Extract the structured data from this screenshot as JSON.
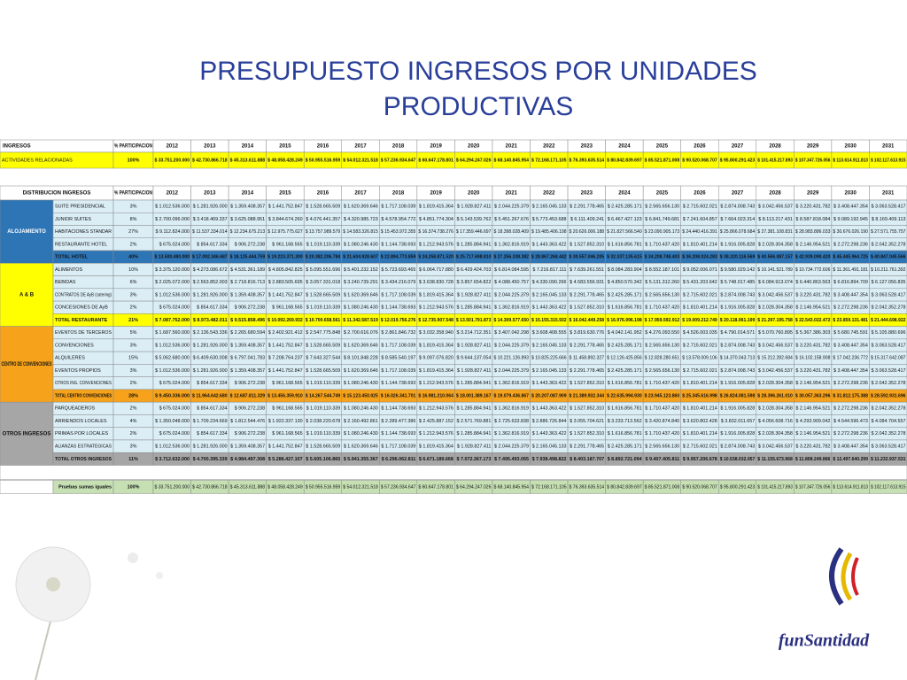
{
  "title_line1": "PRESUPUESTO INGRESOS POR UNIDADES",
  "title_line2": "PRODUCTIVAS",
  "top_table": {
    "header_label": "INGRESOS",
    "pct_header": "% PARTICIPACION",
    "years": [
      2012,
      2013,
      2014,
      2015,
      2016,
      2017,
      2018,
      2019,
      2020,
      2021,
      2022,
      2023,
      2024,
      2025,
      2026,
      2027,
      2028,
      2029,
      2030,
      2031
    ],
    "row": {
      "label": "ACTIVIDADES RELACIONADAS",
      "pct": "100%",
      "values": [
        "$ 33.751.200.000",
        "$ 42.730.866.718",
        "$ 45.313.611.888",
        "$ 48.058.428.249",
        "$ 50.955.516.959",
        "$ 54.012.321.518",
        "$ 57.236.934.647",
        "$ 60.647.178.801",
        "$ 64.294.247.026",
        "$ 68.140.845.954",
        "$ 72.168.171.105",
        "$ 76.393.635.514",
        "$ 80.842.839.697",
        "$ 85.521.871.008",
        "$ 90.520.068.707",
        "$ 95.800.291.423",
        "$ 101.415.217.893",
        "$ 107.347.726.056",
        "$ 113.614.911.813",
        "$ 102.117.613.915"
      ]
    }
  },
  "main_table": {
    "header_label": "DISTRIBUCION INGRESOS",
    "pct_header": "% PARTICIPACION",
    "years": [
      2012,
      2013,
      2014,
      2015,
      2016,
      2017,
      2018,
      2019,
      2020,
      2021,
      2022,
      2023,
      2024,
      2025,
      2026,
      2027,
      2028,
      2029,
      2030,
      2031
    ],
    "groups": [
      {
        "name": "ALOJAMIENTO",
        "rows": [
          {
            "label": "SUITE PRESIDENCIAL",
            "pct": "3%",
            "values": [
              "$ 1.012.536.000",
              "$ 1.281.926.000",
              "$ 1.359.408.357",
              "$ 1.441.752.847",
              "$ 1.528.665.509",
              "$ 1.620.369.646",
              "$ 1.717.108.039",
              "$ 1.819.415.364",
              "$ 1.928.827.411",
              "$ 2.044.225.379",
              "$ 2.165.045.133",
              "$ 2.291.778.465",
              "$ 2.425.285.171",
              "$ 2.565.656.130",
              "$ 2.715.602.021",
              "$ 2.874.008.743",
              "$ 3.042.456.537",
              "$ 3.220.431.782",
              "$ 3.408.447.354",
              "$ 3.063.528.417"
            ]
          },
          {
            "label": "JUNIOR SUITES",
            "pct": "8%",
            "values": [
              "$ 2.700.096.000",
              "$ 3.418.469.337",
              "$ 3.625.088.951",
              "$ 3.844.674.260",
              "$ 4.076.441.357",
              "$ 4.320.985.723",
              "$ 4.578.954.772",
              "$ 4.851.774.304",
              "$ 5.143.539.762",
              "$ 5.451.267.676",
              "$ 5.773.453.688",
              "$ 6.111.409.241",
              "$ 6.467.427.123",
              "$ 6.841.749.681",
              "$ 7.241.604.857",
              "$ 7.664.023.314",
              "$ 8.113.217.431",
              "$ 8.587.818.084",
              "$ 9.089.192.945",
              "$ 8.169.409.113"
            ]
          },
          {
            "label": "HABITACIONES STANDAR",
            "pct": "27%",
            "values": [
              "$ 9.112.824.000",
              "$ 11.537.334.014",
              "$ 12.234.675.213",
              "$ 12.975.775.627",
              "$ 13.757.989.579",
              "$ 14.583.326.815",
              "$ 15.453.972.355",
              "$ 16.374.738.276",
              "$ 17.359.446.697",
              "$ 18.398.028.409",
              "$ 19.485.406.198",
              "$ 20.626.006.188",
              "$ 21.827.566.540",
              "$ 23.090.905.173",
              "$ 24.440.416.391",
              "$ 25.866.078.684",
              "$ 27.381.108.831",
              "$ 28.983.886.033",
              "$ 30.676.026.190",
              "$ 27.571.755.757"
            ]
          },
          {
            "label": "RESTAURANTE HOTEL",
            "pct": "2%",
            "values": [
              "$ 675.024.000",
              "$ 854.617.334",
              "$ 906.272.238",
              "$ 961.168.565",
              "$ 1.019.110.339",
              "$ 1.080.246.430",
              "$ 1.144.738.693",
              "$ 1.212.943.576",
              "$ 1.285.884.941",
              "$ 1.362.816.919",
              "$ 1.443.363.422",
              "$ 1.527.852.310",
              "$ 1.616.856.781",
              "$ 1.710.437.420",
              "$ 1.810.401.214",
              "$ 1.916.005.828",
              "$ 2.028.304.358",
              "$ 2.146.954.521",
              "$ 2.272.298.236",
              "$ 2.042.352.278"
            ]
          },
          {
            "label": "TOTAL HOTEL",
            "pct": "40%",
            "values": [
              "$ 13.500.480.000",
              "$ 17.092.346.687",
              "$ 18.125.444.759",
              "$ 19.223.371.300",
              "$ 20.382.206.784",
              "$ 21.604.928.607",
              "$ 22.894.773.859",
              "$ 24.258.871.520",
              "$ 25.717.698.810",
              "$ 27.256.338.382",
              "$ 28.867.268.442",
              "$ 30.557.046.205",
              "$ 32.337.135.615",
              "$ 34.208.748.403",
              "$ 36.208.024.283",
              "$ 38.320.116.569",
              "$ 40.566.087.157",
              "$ 42.939.090.420",
              "$ 45.445.964.725",
              "$ 40.847.045.566"
            ]
          }
        ]
      },
      {
        "name": "A & B",
        "rows": [
          {
            "label": "ALIMENTOS",
            "pct": "10%",
            "values": [
              "$ 3.375.120.000",
              "$ 4.273.086.672",
              "$ 4.531.361.189",
              "$ 4.805.842.825",
              "$ 5.095.551.696",
              "$ 5.401.232.152",
              "$ 5.723.693.465",
              "$ 6.064.717.880",
              "$ 6.429.424.703",
              "$ 6.814.084.595",
              "$ 7.216.817.111",
              "$ 7.639.261.551",
              "$ 8.084.283.904",
              "$ 8.552.187.101",
              "$ 9.052.006.071",
              "$ 9.580.029.142",
              "$ 10.141.521.789",
              "$ 10.734.772.606",
              "$ 11.361.491.181",
              "$ 10.211.761.392"
            ]
          },
          {
            "label": "BEBIDAS",
            "pct": "6%",
            "values": [
              "$ 2.025.072.000",
              "$ 2.563.852.003",
              "$ 2.718.816.713",
              "$ 2.883.505.695",
              "$ 3.057.331.018",
              "$ 3.240.739.291",
              "$ 3.434.216.079",
              "$ 3.638.830.728",
              "$ 3.857.654.822",
              "$ 4.088.450.757",
              "$ 4.330.090.266",
              "$ 4.583.556.931",
              "$ 4.850.570.342",
              "$ 5.131.312.260",
              "$ 5.431.203.642",
              "$ 5.748.017.485",
              "$ 6.084.913.074",
              "$ 6.440.863.563",
              "$ 6.816.894.709",
              "$ 6.127.056.835"
            ]
          },
          {
            "label": "CONTRATOS DE AyB (catering)",
            "pct": "3%",
            "values": [
              "$ 1.012.536.000",
              "$ 1.281.926.000",
              "$ 1.359.408.357",
              "$ 1.441.752.847",
              "$ 1.528.665.509",
              "$ 1.620.369.646",
              "$ 1.717.108.039",
              "$ 1.819.415.364",
              "$ 1.928.827.411",
              "$ 2.044.225.379",
              "$ 2.165.045.133",
              "$ 2.291.778.465",
              "$ 2.425.285.171",
              "$ 2.565.656.130",
              "$ 2.715.602.021",
              "$ 2.874.008.743",
              "$ 3.042.456.537",
              "$ 3.220.431.782",
              "$ 3.408.447.354",
              "$ 3.063.528.417"
            ]
          },
          {
            "label": "CONCESIONES DE AyB",
            "pct": "2%",
            "values": [
              "$ 675.024.000",
              "$ 854.617.334",
              "$ 906.272.238",
              "$ 961.168.565",
              "$ 1.019.110.339",
              "$ 1.080.246.430",
              "$ 1.144.738.693",
              "$ 1.212.943.576",
              "$ 1.285.884.941",
              "$ 1.362.816.919",
              "$ 1.443.363.422",
              "$ 1.527.852.310",
              "$ 1.616.856.781",
              "$ 1.710.437.420",
              "$ 1.810.401.214",
              "$ 1.916.005.828",
              "$ 2.028.304.358",
              "$ 2.146.954.521",
              "$ 2.272.298.236",
              "$ 2.042.352.278"
            ]
          },
          {
            "label": "TOTAL RESTAURANTE",
            "pct": "21%",
            "values": [
              "$ 7.087.752.000",
              "$ 8.973.482.011",
              "$ 9.515.858.496",
              "$ 10.092.269.932",
              "$ 10.700.658.561",
              "$ 11.342.587.519",
              "$ 12.019.756.276",
              "$ 12.735.907.548",
              "$ 13.501.791.873",
              "$ 14.309.577.650",
              "$ 15.155.315.932",
              "$ 16.042.449.258",
              "$ 16.976.996.198",
              "$ 17.959.592.912",
              "$ 19.009.212.749",
              "$ 20.118.061.199",
              "$ 21.297.195.758",
              "$ 22.543.022.472",
              "$ 23.859.131.481",
              "$ 21.444.698.922"
            ]
          }
        ]
      },
      {
        "name": "CENTRO DE CONVENCIONES",
        "rows": [
          {
            "label": "EVENTOS DE TERCEROS",
            "pct": "5%",
            "values": [
              "$ 1.687.560.000",
              "$ 2.136.543.336",
              "$ 2.265.680.594",
              "$ 2.402.921.412",
              "$ 2.547.775.848",
              "$ 2.700.616.076",
              "$ 2.861.846.732",
              "$ 3.032.358.940",
              "$ 3.214.712.351",
              "$ 3.407.042.298",
              "$ 3.608.408.555",
              "$ 3.819.630.776",
              "$ 4.042.141.952",
              "$ 4.276.093.550",
              "$ 4.526.003.035",
              "$ 4.790.014.571",
              "$ 5.070.760.895",
              "$ 5.367.386.303",
              "$ 5.680.745.591",
              "$ 5.105.880.696"
            ]
          },
          {
            "label": "CONVENCIONES",
            "pct": "3%",
            "values": [
              "$ 1.012.536.000",
              "$ 1.281.926.000",
              "$ 1.359.408.357",
              "$ 1.441.752.847",
              "$ 1.528.665.509",
              "$ 1.620.369.646",
              "$ 1.717.108.039",
              "$ 1.819.415.364",
              "$ 1.928.827.411",
              "$ 2.044.225.379",
              "$ 2.165.045.133",
              "$ 2.291.778.465",
              "$ 2.425.285.171",
              "$ 2.565.656.130",
              "$ 2.715.602.021",
              "$ 2.874.008.743",
              "$ 3.042.456.537",
              "$ 3.220.431.782",
              "$ 3.408.447.354",
              "$ 3.063.528.417"
            ]
          },
          {
            "label": "ALQUILERES",
            "pct": "15%",
            "values": [
              "$ 5.062.680.000",
              "$ 6.409.630.008",
              "$ 6.797.041.783",
              "$ 7.208.764.237",
              "$ 7.643.327.544",
              "$ 8.101.848.228",
              "$ 8.585.540.197",
              "$ 9.097.076.820",
              "$ 9.644.137.054",
              "$ 10.221.126.893",
              "$ 10.825.225.666",
              "$ 11.458.892.327",
              "$ 12.126.425.856",
              "$ 12.828.280.651",
              "$ 13.578.009.106",
              "$ 14.370.043.713",
              "$ 15.212.282.684",
              "$ 16.102.158.908",
              "$ 17.042.236.772",
              "$ 15.317.642.087"
            ]
          },
          {
            "label": "EVENTOS PROPIOS",
            "pct": "3%",
            "values": [
              "$ 1.012.536.000",
              "$ 1.281.926.000",
              "$ 1.359.408.357",
              "$ 1.441.752.847",
              "$ 1.528.665.509",
              "$ 1.620.369.646",
              "$ 1.717.108.039",
              "$ 1.819.415.364",
              "$ 1.928.827.411",
              "$ 2.044.225.379",
              "$ 2.165.045.133",
              "$ 2.291.778.465",
              "$ 2.425.285.171",
              "$ 2.565.656.130",
              "$ 2.715.602.021",
              "$ 2.874.008.743",
              "$ 3.042.456.537",
              "$ 3.220.431.782",
              "$ 3.408.447.354",
              "$ 3.063.528.417"
            ]
          },
          {
            "label": "OTROS ING. CONVENCIONES",
            "pct": "2%",
            "values": [
              "$ 675.024.000",
              "$ 854.617.334",
              "$ 906.272.238",
              "$ 961.168.565",
              "$ 1.019.110.339",
              "$ 1.080.246.430",
              "$ 1.144.738.693",
              "$ 1.212.943.576",
              "$ 1.285.884.941",
              "$ 1.362.816.919",
              "$ 1.443.363.422",
              "$ 1.527.852.310",
              "$ 1.616.856.781",
              "$ 1.710.437.420",
              "$ 1.810.401.214",
              "$ 1.916.005.828",
              "$ 2.028.304.358",
              "$ 2.146.954.521",
              "$ 2.272.298.236",
              "$ 2.042.352.278"
            ]
          },
          {
            "label": "TOTAL CENTRO CONVENCIONES",
            "pct": "28%",
            "values": [
              "$ 9.450.336.000",
              "$ 11.964.642.680",
              "$ 12.687.811.329",
              "$ 13.456.359.910",
              "$ 14.267.544.749",
              "$ 15.123.450.025",
              "$ 16.026.341.701",
              "$ 16.981.210.064",
              "$ 18.001.389.167",
              "$ 19.079.436.867",
              "$ 20.207.087.909",
              "$ 21.389.932.344",
              "$ 22.635.994.930",
              "$ 23.945.123.860",
              "$ 25.345.616.998",
              "$ 26.824.081.598",
              "$ 28.396.261.010",
              "$ 30.057.363.296",
              "$ 31.812.175.388",
              "$ 28.592.931.696"
            ]
          }
        ]
      },
      {
        "name": "OTROS INGRESOS",
        "rows": [
          {
            "label": "PARQUEADEROS",
            "pct": "2%",
            "values": [
              "$ 675.024.000",
              "$ 854.617.334",
              "$ 906.272.238",
              "$ 961.168.565",
              "$ 1.019.110.339",
              "$ 1.080.246.430",
              "$ 1.144.738.693",
              "$ 1.212.943.576",
              "$ 1.285.884.941",
              "$ 1.362.816.919",
              "$ 1.443.363.422",
              "$ 1.527.852.310",
              "$ 1.616.856.781",
              "$ 1.710.437.420",
              "$ 1.810.401.214",
              "$ 1.916.005.828",
              "$ 2.028.304.358",
              "$ 2.146.954.521",
              "$ 2.272.298.236",
              "$ 2.042.352.278"
            ]
          },
          {
            "label": "ARRIENDOS LOCALES",
            "pct": "4%",
            "values": [
              "$ 1.350.048.000",
              "$ 1.709.234.669",
              "$ 1.812.544.476",
              "$ 1.922.337.130",
              "$ 2.038.220.678",
              "$ 2.160.492.861",
              "$ 2.289.477.386",
              "$ 2.425.887.152",
              "$ 2.571.769.881",
              "$ 2.725.633.838",
              "$ 2.886.726.844",
              "$ 3.055.704.621",
              "$ 3.233.713.562",
              "$ 3.420.874.840",
              "$ 3.620.802.428",
              "$ 3.832.011.657",
              "$ 4.056.608.716",
              "$ 4.293.909.042",
              "$ 4.544.596.473",
              "$ 4.084.704.557"
            ]
          },
          {
            "label": "PRIMAS POR LOCALES",
            "pct": "2%",
            "values": [
              "$ 675.024.000",
              "$ 854.617.334",
              "$ 906.272.238",
              "$ 961.168.565",
              "$ 1.019.110.339",
              "$ 1.080.246.430",
              "$ 1.144.738.693",
              "$ 1.212.943.576",
              "$ 1.285.884.941",
              "$ 1.362.816.919",
              "$ 1.443.363.422",
              "$ 1.527.852.310",
              "$ 1.616.856.781",
              "$ 1.710.437.420",
              "$ 1.810.401.214",
              "$ 1.916.005.828",
              "$ 2.028.304.358",
              "$ 2.146.954.521",
              "$ 2.272.298.236",
              "$ 2.042.352.278"
            ]
          },
          {
            "label": "ALIANZAS ESTRATEGICAS",
            "pct": "3%",
            "values": [
              "$ 1.012.536.000",
              "$ 1.281.926.000",
              "$ 1.359.408.357",
              "$ 1.441.752.847",
              "$ 1.528.665.509",
              "$ 1.620.369.646",
              "$ 1.717.108.039",
              "$ 1.819.415.364",
              "$ 1.928.827.411",
              "$ 2.044.225.379",
              "$ 2.165.045.133",
              "$ 2.291.778.465",
              "$ 2.425.285.171",
              "$ 2.565.656.130",
              "$ 2.715.602.021",
              "$ 2.874.008.743",
              "$ 3.042.456.537",
              "$ 3.220.431.782",
              "$ 3.408.447.354",
              "$ 3.063.528.417"
            ]
          },
          {
            "label": "TOTAL OTROS INGRESOS",
            "pct": "11%",
            "values": [
              "$ 3.712.632.000",
              "$ 4.700.395.339",
              "$ 4.984.497.308",
              "$ 5.286.427.107",
              "$ 5.605.106.865",
              "$ 5.941.355.367",
              "$ 6.296.062.811",
              "$ 6.671.189.668",
              "$ 7.072.367.173",
              "$ 7.495.493.055",
              "$ 7.938.498.822",
              "$ 8.403.187.707",
              "$ 8.892.721.094",
              "$ 9.407.405.811",
              "$ 9.957.206.678",
              "$ 10.538.032.057",
              "$ 11.155.673.968",
              "$ 11.808.249.866",
              "$ 12.497.640.299",
              "$ 11.232.937.531"
            ]
          }
        ]
      }
    ],
    "check_row": {
      "label": "Pruebas sumas iguales",
      "pct": "100%",
      "values": [
        "$ 33.751.200.000",
        "$ 42.730.866.718",
        "$ 45.313.611.888",
        "$ 48.058.428.249",
        "$ 50.955.516.959",
        "$ 54.012.321.518",
        "$ 57.236.934.647",
        "$ 60.647.178.801",
        "$ 64.294.247.026",
        "$ 68.140.845.954",
        "$ 72.168.171.105",
        "$ 76.393.635.514",
        "$ 80.842.839.697",
        "$ 85.521.871.008",
        "$ 90.520.068.707",
        "$ 95.800.291.423",
        "$ 101.415.217.893",
        "$ 107.347.726.056",
        "$ 113.614.911.813",
        "$ 102.117.613.915"
      ]
    }
  },
  "logo": "funSantidad"
}
